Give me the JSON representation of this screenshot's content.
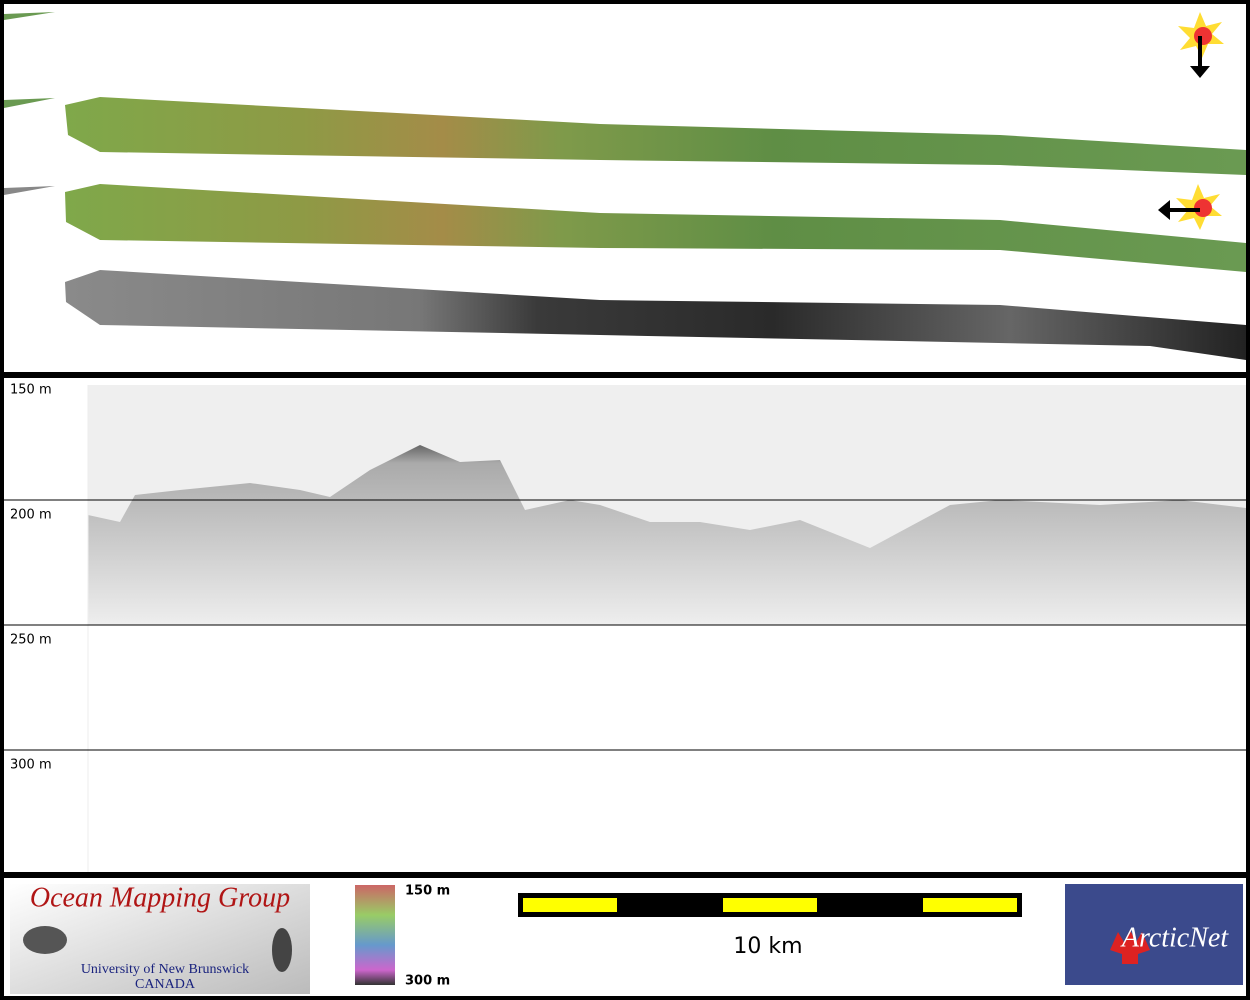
{
  "profile": {
    "depth_labels": [
      "150 m",
      "200 m",
      "250 m",
      "300 m"
    ]
  },
  "legend": {
    "organization": {
      "name": "Ocean Mapping Group",
      "university": "University of New Brunswick",
      "country": "CANADA"
    },
    "depth_scale": {
      "top": "150 m",
      "bottom": "300 m"
    },
    "scale_bar": "10 km",
    "partner": "ArcticNet"
  }
}
